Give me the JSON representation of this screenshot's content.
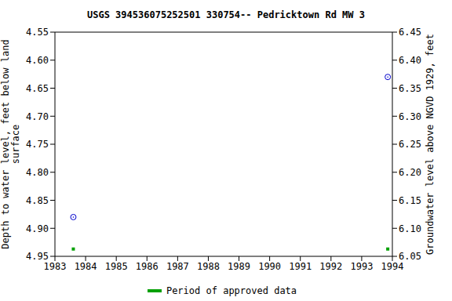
{
  "chart_data": {
    "type": "scatter",
    "title": "USGS 394536075252501 330754-- Pedricktown Rd MW 3",
    "y_label": "Depth to water level, feet below land surface",
    "y2_label": "Groundwater level above NGVD 1929, feet",
    "xlim": [
      1983,
      1994
    ],
    "xticks": [
      1983,
      1984,
      1985,
      1986,
      1987,
      1988,
      1989,
      1990,
      1991,
      1992,
      1993,
      1994
    ],
    "ylim": [
      4.95,
      4.55
    ],
    "yticks": [
      4.55,
      {
        "value": 4.6,
        "label": "4.60"
      },
      4.65,
      {
        "value": 4.7,
        "label": "4.70"
      },
      4.75,
      {
        "value": 4.8,
        "label": "4.80"
      },
      4.85,
      {
        "value": 4.9,
        "label": "4.90"
      },
      4.95
    ],
    "y2lim": [
      6.05,
      6.45
    ],
    "y2ticks": [
      6.05,
      {
        "value": 6.1,
        "label": "6.10"
      },
      6.15,
      {
        "value": 6.2,
        "label": "6.20"
      },
      6.25,
      {
        "value": 6.3,
        "label": "6.30"
      },
      6.35,
      {
        "value": 6.4,
        "label": "6.40"
      },
      6.45
    ],
    "grid": false,
    "legend": "bottom",
    "series": [
      {
        "color": "#0000cc",
        "marker": "circle",
        "x": [
          1983.6,
          1993.85
        ],
        "values": [
          4.88,
          4.63
        ]
      },
      {
        "name": "Period of approved data",
        "color": "#00a000",
        "marker": "square",
        "x": [
          1983.6,
          1993.85
        ],
        "values": [
          4.937,
          4.937
        ]
      }
    ]
  }
}
